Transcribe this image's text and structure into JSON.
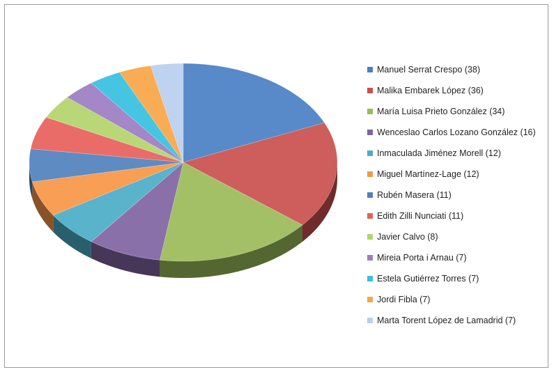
{
  "chart_data": {
    "type": "pie",
    "style": "3d",
    "title": "",
    "legend_position": "right",
    "slices": [
      {
        "label": "Manuel Serrat Crespo (38)",
        "name": "Manuel Serrat Crespo",
        "value": 38,
        "color": "#4a7fc4"
      },
      {
        "label": "Malika Embarek López (36)",
        "name": "Malika Embarek López",
        "value": 36,
        "color": "#c9504d"
      },
      {
        "label": "María Luisa Prieto González (34)",
        "name": "María Luisa Prieto González",
        "value": 34,
        "color": "#9bbb59"
      },
      {
        "label": "Wenceslao Carlos Lozano González (16)",
        "name": "Wenceslao Carlos Lozano González",
        "value": 16,
        "color": "#8064a2"
      },
      {
        "label": "Inmaculada Jiménez Morell (12)",
        "name": "Inmaculada Jiménez Morell",
        "value": 12,
        "color": "#4bacc6"
      },
      {
        "label": "Miguel Martínez-Lage (12)",
        "name": "Miguel Martínez-Lage",
        "value": 12,
        "color": "#f79646"
      },
      {
        "label": "Rubén Masera (11)",
        "name": "Rubén Masera",
        "value": 11,
        "color": "#4f81bd"
      },
      {
        "label": "Edith Zilli Nunciati (11)",
        "name": "Edith Zilli Nunciati",
        "value": 11,
        "color": "#e8605c"
      },
      {
        "label": "Javier Calvo (8)",
        "name": "Javier Calvo",
        "value": 8,
        "color": "#b3d46b"
      },
      {
        "label": "Mireia Porta i Arnau (7)",
        "name": "Mireia Porta i Arnau",
        "value": 7,
        "color": "#9b7dc2"
      },
      {
        "label": "Estela Gutiérrez Torres (7)",
        "name": "Estela Gutiérrez Torres",
        "value": 7,
        "color": "#36c0e0"
      },
      {
        "label": "Jordi Fibla (7)",
        "name": "Jordi Fibla",
        "value": 7,
        "color": "#f9a545"
      },
      {
        "label": "Marta Torent López de Lamadrid (7)",
        "name": "Marta Torent López de Lamadrid",
        "value": 7,
        "color": "#b9cfee"
      }
    ]
  }
}
